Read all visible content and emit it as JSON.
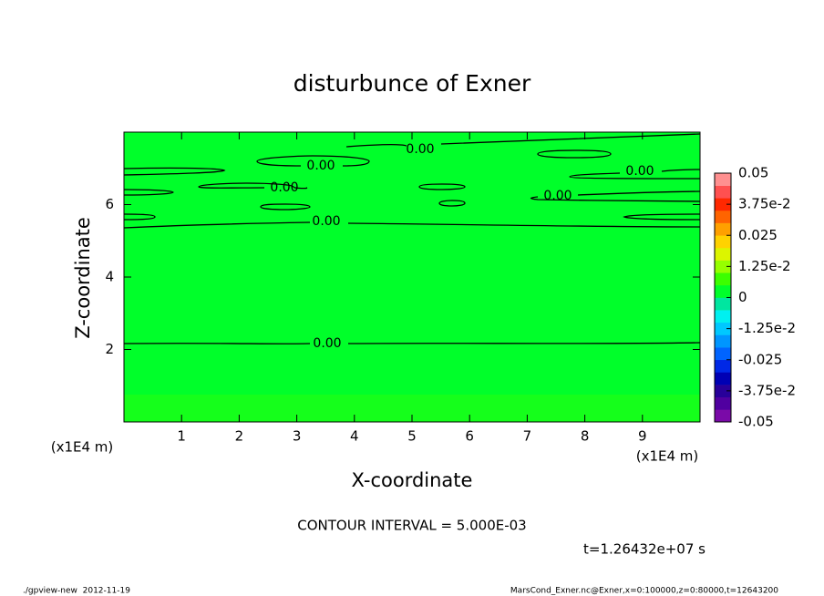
{
  "chart_data": {
    "type": "contour",
    "title": "disturbunce of Exner",
    "x_label": "X-coordinate",
    "y_label": "Z-coordinate",
    "x_unit": "(x1E4 m)",
    "y_unit": "(x1E4 m)",
    "xlim": [
      0,
      10
    ],
    "ylim": [
      0,
      8
    ],
    "xticks": [
      1,
      2,
      3,
      4,
      5,
      6,
      7,
      8,
      9
    ],
    "yticks": [
      2,
      4,
      6
    ],
    "contour_level": 0,
    "contour_label": "0.00",
    "clim": [
      -0.05,
      0.05
    ],
    "cticks": [
      {
        "value": -0.05,
        "label": "-0.05"
      },
      {
        "value": -0.0375,
        "label": "-3.75e-2"
      },
      {
        "value": -0.025,
        "label": "-0.025"
      },
      {
        "value": -0.0125,
        "label": "-1.25e-2"
      },
      0,
      {
        "value": 0.0125,
        "label": "1.25e-2"
      },
      0.025,
      {
        "value": 0.0375,
        "label": "3.75e-2"
      },
      0.05
    ],
    "colorbar_colors": [
      "#7a0aa8",
      "#5000a0",
      "#28009a",
      "#0000b4",
      "#0028e6",
      "#0064ff",
      "#0096ff",
      "#00c8ff",
      "#00f0f0",
      "#00e6a0",
      "#00ff2a",
      "#3cff00",
      "#96ff00",
      "#dcf500",
      "#ffd200",
      "#ffa000",
      "#ff6400",
      "#ff2800",
      "#ff5050",
      "#ff9090"
    ],
    "contour_interval": "CONTOUR INTERVAL = 5.000E-03",
    "time_label": "t=1.26432e+07 s"
  },
  "footer": {
    "left": "./gpview-new  2012-11-19",
    "right": "MarsCond_Exner.nc@Exner,x=0:100000,z=0:80000,t=12643200"
  }
}
